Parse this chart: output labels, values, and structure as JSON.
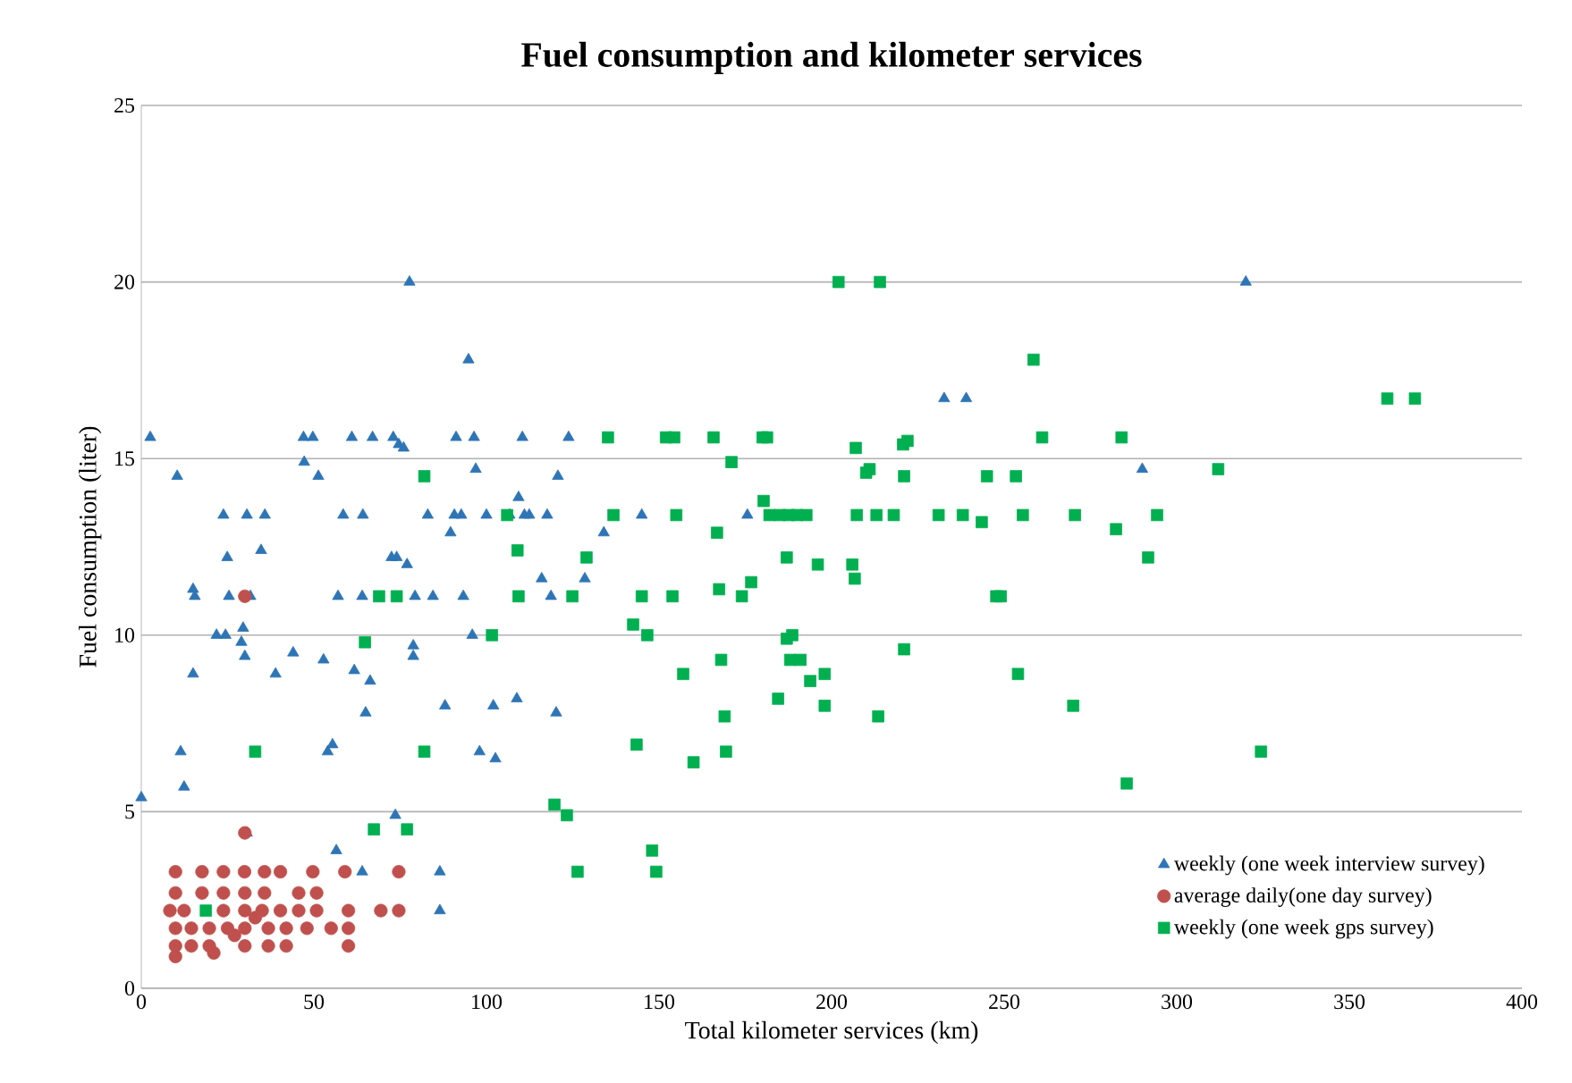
{
  "chart_data": {
    "type": "scatter",
    "title": "Fuel consumption and kilometer services",
    "xlabel": "Total kilometer  services (km)",
    "ylabel": "Fuel consumption (liter)",
    "xlim": [
      0,
      400
    ],
    "ylim": [
      0,
      25
    ],
    "xticks": [
      0,
      50,
      100,
      150,
      200,
      250,
      300,
      350,
      400
    ],
    "yticks": [
      0,
      5,
      10,
      15,
      20,
      25
    ],
    "grid": "y",
    "legend": "bottom right",
    "series": [
      {
        "name": "weekly (one week interview survey)",
        "color": "#2e75b6",
        "marker": "triangle",
        "x": [
          0,
          2.6,
          10.4,
          11.4,
          12.4,
          15,
          15.5,
          15,
          21.8,
          24.4,
          25.4,
          23.8,
          24.9,
          30.6,
          35.8,
          34.7,
          29,
          29.5,
          30,
          31.6,
          38.9,
          44,
          47,
          49.7,
          47.2,
          51.3,
          52.8,
          54,
          55.4,
          57,
          58.5,
          61,
          61.7,
          64.2,
          65,
          66.3,
          64,
          67,
          73,
          72.5,
          74,
          74.6,
          76,
          77.7,
          77,
          78.8,
          78.8,
          73.6,
          83,
          84.5,
          86.5,
          86.5,
          79.3,
          93.3,
          90.7,
          92.7,
          89.6,
          91.2,
          94.8,
          96.4,
          96.9,
          95.9,
          98,
          102.6,
          88,
          100,
          102,
          106.7,
          109.3,
          110.4,
          111,
          112.4,
          117.6,
          116,
          118.7,
          120.7,
          120.2,
          123.8,
          128.5,
          134,
          145,
          108.8,
          175.6,
          232.6,
          239,
          290,
          320,
          56.5,
          30.6,
          64
        ],
        "values": [
          5.4,
          15.6,
          14.5,
          6.7,
          5.7,
          11.3,
          11.1,
          8.9,
          10,
          10,
          11.1,
          13.4,
          12.2,
          13.4,
          13.4,
          12.4,
          9.8,
          10.2,
          9.4,
          11.1,
          8.9,
          9.5,
          15.6,
          15.6,
          14.9,
          14.5,
          9.3,
          6.7,
          6.9,
          11.1,
          13.4,
          15.6,
          9,
          13.4,
          7.8,
          8.7,
          11.1,
          15.6,
          15.6,
          12.2,
          12.2,
          15.4,
          15.3,
          20,
          12,
          9.7,
          9.4,
          4.9,
          13.4,
          11.1,
          2.2,
          3.3,
          11.1,
          11.1,
          13.4,
          13.4,
          12.9,
          15.6,
          17.8,
          15.6,
          14.7,
          10,
          6.7,
          6.5,
          8,
          13.4,
          8,
          13.4,
          13.9,
          15.6,
          13.4,
          13.4,
          13.4,
          11.6,
          11.1,
          14.5,
          7.8,
          15.6,
          11.6,
          12.9,
          13.4,
          8.2,
          13.4,
          16.7,
          16.7,
          14.7,
          20,
          3.9,
          4.4,
          3.3
        ]
      },
      {
        "name": "average daily(one day survey)",
        "color": "#c0504d",
        "marker": "circle",
        "x": [
          9.9,
          17.6,
          23.8,
          29.9,
          35.7,
          40.3,
          49.7,
          59,
          74.6,
          9.9,
          17.6,
          23.8,
          30,
          35.7,
          45.6,
          50.8,
          8.3,
          12.4,
          17.6,
          23.8,
          30,
          35,
          40.3,
          45.6,
          50.8,
          60,
          69.4,
          74.6,
          9.9,
          14.5,
          19.7,
          25,
          30,
          36.8,
          42,
          48,
          55,
          60,
          9.9,
          14.5,
          19.7,
          30,
          36.8,
          42,
          60,
          9.9,
          30,
          30,
          21,
          27,
          33
        ],
        "values": [
          3.3,
          3.3,
          3.3,
          3.3,
          3.3,
          3.3,
          3.3,
          3.3,
          3.3,
          2.7,
          2.7,
          2.7,
          2.7,
          2.7,
          2.7,
          2.7,
          2.2,
          2.2,
          null,
          2.2,
          2.2,
          2.2,
          2.2,
          2.2,
          2.2,
          2.2,
          2.2,
          2.2,
          1.7,
          1.7,
          1.7,
          1.7,
          1.7,
          1.7,
          1.7,
          1.7,
          1.7,
          1.7,
          1.2,
          1.2,
          1.2,
          1.2,
          1.2,
          1.2,
          1.2,
          0.9,
          11.1,
          4.4,
          1.0,
          1.5,
          2.0
        ]
      },
      {
        "name": "weekly (one week gps survey)",
        "color": "#00b050",
        "marker": "square",
        "x": [
          18.7,
          33,
          68.9,
          74,
          64.8,
          67.4,
          77,
          82,
          82,
          101.6,
          106,
          109,
          109.3,
          119.7,
          123.3,
          126.4,
          124.9,
          129,
          135.2,
          136.8,
          142.5,
          146.6,
          145,
          143.5,
          148,
          149.2,
          152,
          154.4,
          153.9,
          155,
          157,
          160,
          165.8,
          166.8,
          167.4,
          168,
          169,
          169.4,
          171,
          174,
          176.7,
          180,
          181.3,
          180.3,
          182,
          185,
          187.6,
          190,
          192.7,
          184.5,
          187,
          187,
          188.6,
          188,
          191,
          193.8,
          196,
          198,
          198,
          202,
          214,
          206,
          206.7,
          207,
          207.3,
          210,
          211,
          213,
          218,
          222,
          221,
          220.7,
          221,
          213.5,
          231,
          238,
          243.5,
          245,
          247.7,
          249,
          253.4,
          254,
          255.4,
          258.5,
          261,
          270.5,
          270,
          282.4,
          284,
          285.5,
          291.7,
          294.3,
          312,
          324.4,
          361,
          369
        ],
        "values": [
          2.2,
          6.7,
          11.1,
          11.1,
          9.8,
          4.5,
          4.5,
          6.7,
          14.5,
          10,
          13.4,
          12.4,
          11.1,
          5.2,
          4.9,
          3.3,
          11.1,
          12.2,
          15.6,
          13.4,
          10.3,
          10,
          11.1,
          6.9,
          3.9,
          3.3,
          15.6,
          15.6,
          11.1,
          13.4,
          8.9,
          6.4,
          15.6,
          12.9,
          11.3,
          9.3,
          7.7,
          6.7,
          14.9,
          11.1,
          11.5,
          15.6,
          15.6,
          13.8,
          13.4,
          13.4,
          13.4,
          13.4,
          13.4,
          8.2,
          12.2,
          9.9,
          10,
          9.3,
          9.3,
          8.7,
          12,
          8.9,
          8,
          20,
          20,
          12,
          11.6,
          15.3,
          13.4,
          14.6,
          14.7,
          13.4,
          13.4,
          15.5,
          14.5,
          15.4,
          9.6,
          7.7,
          13.4,
          13.4,
          13.2,
          14.5,
          11.1,
          11.1,
          14.5,
          8.9,
          13.4,
          17.8,
          15.6,
          13.4,
          8,
          13,
          15.6,
          5.8,
          12.2,
          13.4,
          14.7,
          6.7,
          16.7,
          16.7
        ]
      }
    ]
  }
}
